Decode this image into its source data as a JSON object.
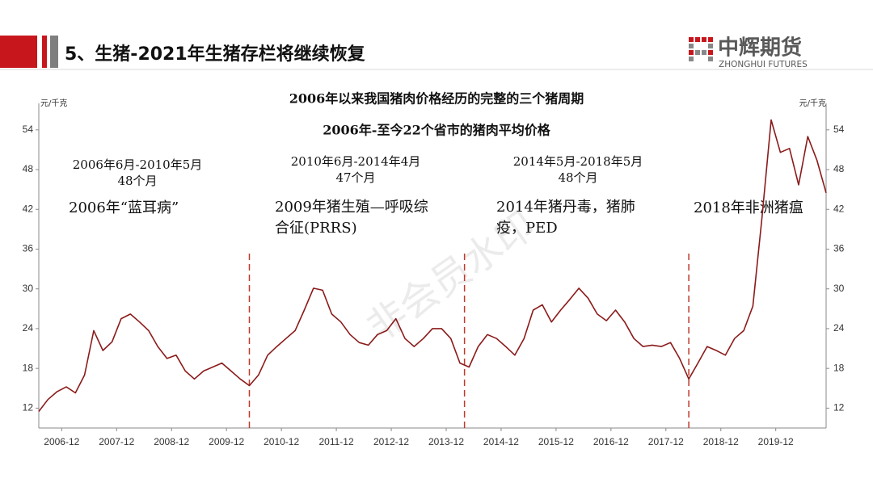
{
  "header": {
    "title": "5、生猪-2021年生猪存栏将继续恢复",
    "logo": "中辉期货",
    "logo_sub": "ZHONGHUI FUTURES"
  },
  "chart_data": {
    "type": "line",
    "title": "2006年以来我国猪肉价格经历的完整的三个猪周期",
    "subtitle": "2006年-至今22个省市的猪肉平均价格",
    "y_label": "元/千克",
    "y2_label": "元/千克",
    "watermark": "非会员水印",
    "xlim": [
      "2006-07",
      "2020-11"
    ],
    "xticks": [
      "2006-12",
      "2007-12",
      "2008-12",
      "2009-12",
      "2010-12",
      "2011-12",
      "2012-12",
      "2013-12",
      "2014-12",
      "2015-12",
      "2016-12",
      "2017-12",
      "2018-12",
      "2019-12"
    ],
    "ylim": [
      9,
      58
    ],
    "yticks": [
      12,
      18,
      24,
      30,
      36,
      42,
      48,
      54
    ],
    "y2lim": [
      9,
      58
    ],
    "y2ticks": [
      12,
      18,
      24,
      30,
      36,
      42,
      48,
      54
    ],
    "dividers": [
      "2010-05",
      "2014-04",
      "2018-05"
    ],
    "divider_color": "#c0392b",
    "annotations": [
      {
        "lines": [
          "2006年6月-2010年5月",
          "48个月"
        ]
      },
      {
        "lines": [
          "2010年6月-2014年4月",
          "47个月"
        ]
      },
      {
        "lines": [
          "2014年5月-2018年5月",
          "48个月"
        ]
      },
      {
        "lines": [
          "2006年“蓝耳病”"
        ]
      },
      {
        "lines": [
          "2009年猪生殖—呼吸综",
          "合征(PRRS)"
        ]
      },
      {
        "lines": [
          "2014年猪丹毒，猪肺",
          "疫，PED"
        ]
      },
      {
        "lines": [
          "2018年非洲猪瘟"
        ]
      }
    ],
    "x": [
      "2006-07",
      "2006-09",
      "2006-11",
      "2007-01",
      "2007-03",
      "2007-05",
      "2007-07",
      "2007-09",
      "2007-11",
      "2008-01",
      "2008-03",
      "2008-05",
      "2008-07",
      "2008-09",
      "2008-11",
      "2009-01",
      "2009-03",
      "2009-05",
      "2009-07",
      "2009-09",
      "2009-11",
      "2010-01",
      "2010-03",
      "2010-05",
      "2010-07",
      "2010-09",
      "2010-11",
      "2011-01",
      "2011-03",
      "2011-05",
      "2011-07",
      "2011-09",
      "2011-11",
      "2012-01",
      "2012-03",
      "2012-05",
      "2012-07",
      "2012-09",
      "2012-11",
      "2013-01",
      "2013-03",
      "2013-05",
      "2013-07",
      "2013-09",
      "2013-11",
      "2014-01",
      "2014-03",
      "2014-05",
      "2014-07",
      "2014-09",
      "2014-11",
      "2015-01",
      "2015-03",
      "2015-05",
      "2015-07",
      "2015-09",
      "2015-11",
      "2016-01",
      "2016-03",
      "2016-05",
      "2016-07",
      "2016-09",
      "2016-11",
      "2017-01",
      "2017-03",
      "2017-05",
      "2017-07",
      "2017-09",
      "2017-11",
      "2018-01",
      "2018-03",
      "2018-05",
      "2018-07",
      "2018-09",
      "2018-11",
      "2019-01",
      "2019-03",
      "2019-05",
      "2019-07",
      "2019-09",
      "2019-11",
      "2020-01",
      "2020-03",
      "2020-05",
      "2020-07",
      "2020-09",
      "2020-11"
    ],
    "series": [
      {
        "name": "猪肉平均价格",
        "color": "#8b1a1a",
        "values": [
          11.5,
          13.3,
          14.5,
          15.2,
          14.3,
          17,
          23.7,
          20.7,
          22,
          25.5,
          26.2,
          25,
          23.7,
          21.3,
          19.5,
          20,
          17.6,
          16.4,
          17.6,
          18.2,
          18.8,
          17.6,
          16.4,
          15.4,
          17,
          20,
          21.3,
          22.5,
          23.7,
          26.8,
          30.1,
          29.8,
          26.2,
          25,
          23.1,
          21.9,
          21.5,
          23.1,
          23.7,
          25.5,
          22.5,
          21.3,
          22.5,
          24,
          24,
          22.5,
          18.8,
          18.2,
          21.3,
          23.1,
          22.5,
          21.3,
          20,
          22.5,
          26.8,
          27.6,
          25,
          26.8,
          28.4,
          30.1,
          28.6,
          26.2,
          25.2,
          26.8,
          25,
          22.5,
          21.3,
          21.5,
          21.3,
          21.9,
          19.5,
          16.4,
          18.8,
          21.3,
          20.7,
          20,
          22.5,
          23.7,
          27.4,
          40.8,
          55.5,
          50.6,
          51.2,
          45.7,
          53,
          49.4,
          44.5
        ]
      }
    ]
  }
}
